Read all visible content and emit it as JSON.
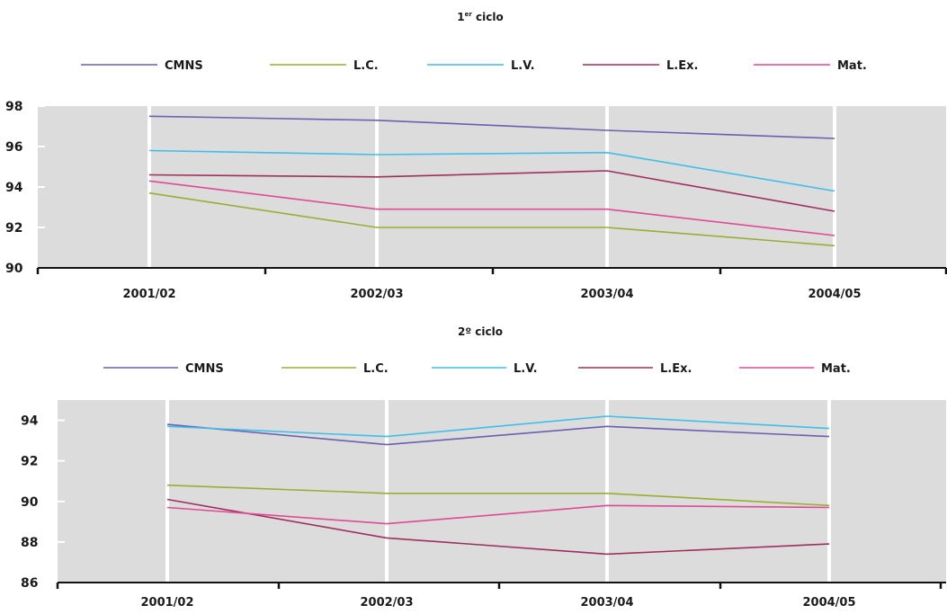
{
  "chart_data": [
    {
      "type": "line",
      "title": "1",
      "title_superscript": "er",
      "title_rest": " ciclo",
      "categories": [
        "2001/02",
        "2002/03",
        "2003/04",
        "2004/05"
      ],
      "ylim": [
        90,
        98
      ],
      "yticks": [
        90,
        92,
        94,
        96,
        98
      ],
      "grid": "vertical",
      "legend_position": "top",
      "series": [
        {
          "name": "CMNS",
          "color": "#6a5fb0",
          "values": [
            97.5,
            97.3,
            96.8,
            96.4
          ]
        },
        {
          "name": "L.C.",
          "color": "#9aad32",
          "values": [
            93.7,
            92.0,
            92.0,
            91.1
          ]
        },
        {
          "name": "L.V.",
          "color": "#3fbee9",
          "values": [
            95.8,
            95.6,
            95.7,
            93.8
          ]
        },
        {
          "name": "L.Ex.",
          "color": "#9e2f5e",
          "values": [
            94.6,
            94.5,
            94.8,
            92.8
          ]
        },
        {
          "name": "Mat.",
          "color": "#e04a93",
          "values": [
            94.3,
            92.9,
            92.9,
            91.6
          ]
        }
      ]
    },
    {
      "type": "line",
      "title": "2º ciclo",
      "categories": [
        "2001/02",
        "2002/03",
        "2003/04",
        "2004/05"
      ],
      "ylim": [
        86,
        95
      ],
      "yticks": [
        86,
        88,
        90,
        92,
        94
      ],
      "grid": "vertical",
      "legend_position": "top",
      "series": [
        {
          "name": "CMNS",
          "color": "#6a5fb0",
          "values": [
            93.8,
            92.8,
            93.7,
            93.2
          ]
        },
        {
          "name": "L.C.",
          "color": "#9aad32",
          "values": [
            90.8,
            90.4,
            90.4,
            89.8
          ]
        },
        {
          "name": "L.V.",
          "color": "#3fbee9",
          "values": [
            93.7,
            93.2,
            94.2,
            93.6
          ]
        },
        {
          "name": "L.Ex.",
          "color": "#9e2f5e",
          "values": [
            90.1,
            88.2,
            87.4,
            87.9
          ]
        },
        {
          "name": "Mat.",
          "color": "#e04a93",
          "values": [
            89.7,
            88.9,
            89.8,
            89.7
          ]
        }
      ]
    }
  ]
}
